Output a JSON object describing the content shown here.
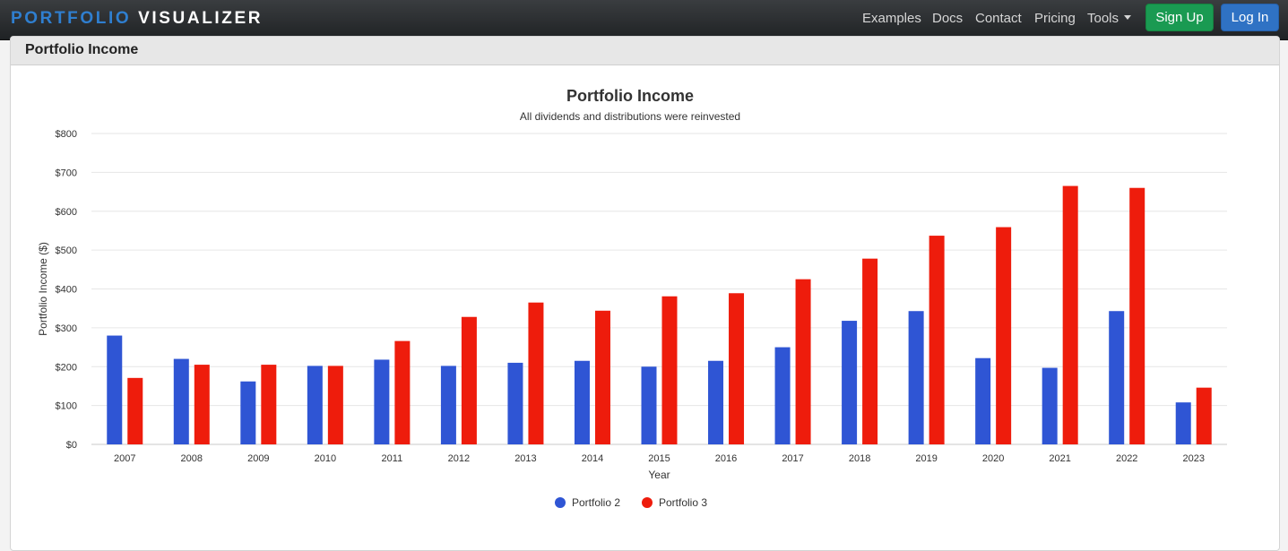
{
  "navbar": {
    "brand_part1": "PORTFOLIO",
    "brand_part2": "VISUALIZER",
    "links": {
      "examples": "Examples",
      "docs": "Docs",
      "contact": "Contact",
      "pricing": "Pricing",
      "tools": "Tools"
    },
    "signup_label": "Sign Up",
    "login_label": "Log In"
  },
  "panel": {
    "title": "Portfolio Income"
  },
  "colors": {
    "portfolio_2": "#2f55d4",
    "portfolio_3": "#ee1c0c",
    "signup": "#1a9a52",
    "login": "#2f72c4",
    "brand_accent": "#2f7fd0"
  },
  "chart_data": {
    "type": "bar",
    "title": "Portfolio Income",
    "subtitle": "All dividends and distributions were reinvested",
    "xlabel": "Year",
    "ylabel": "Portfolio Income ($)",
    "ylim": [
      0,
      800
    ],
    "yticks": [
      "$0",
      "$100",
      "$200",
      "$300",
      "$400",
      "$500",
      "$600",
      "$700",
      "$800"
    ],
    "grid": true,
    "legend_position": "bottom",
    "categories": [
      "2007",
      "2008",
      "2009",
      "2010",
      "2011",
      "2012",
      "2013",
      "2014",
      "2015",
      "2016",
      "2017",
      "2018",
      "2019",
      "2020",
      "2021",
      "2022",
      "2023"
    ],
    "series": [
      {
        "name": "Portfolio 2",
        "values": [
          280,
          220,
          162,
          202,
          218,
          202,
          210,
          215,
          200,
          215,
          250,
          318,
          343,
          222,
          197,
          343,
          108
        ]
      },
      {
        "name": "Portfolio 3",
        "values": [
          171,
          205,
          205,
          202,
          266,
          328,
          365,
          344,
          381,
          389,
          425,
          478,
          537,
          559,
          665,
          660,
          146
        ]
      }
    ]
  }
}
